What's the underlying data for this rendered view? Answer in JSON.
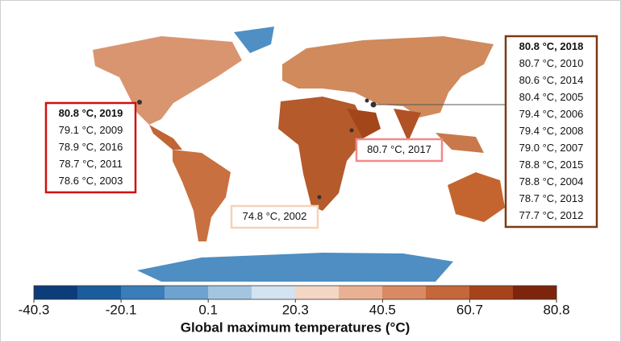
{
  "map": {
    "colorbar": {
      "title": "Global maximum temperatures (°C)",
      "ticks": [
        -40.3,
        -20.1,
        0.1,
        20.3,
        40.5,
        60.7,
        80.8
      ],
      "colors": [
        "#0d3c7a",
        "#1b5c9c",
        "#3a7db8",
        "#6ea3cf",
        "#a3c5e0",
        "#d3e3ef",
        "#f4d6c4",
        "#e9b193",
        "#da8a63",
        "#c5663b",
        "#a6431b",
        "#7d250c"
      ]
    },
    "annotations": [
      {
        "lines": [
          "80.8 °C, 2019",
          "79.1 °C, 2009",
          "78.9 °C, 2016",
          "78.7 °C, 2011",
          "78.6 °C, 2003"
        ],
        "border": "#d01010",
        "highlight": "#c00000"
      },
      {
        "lines": [
          "80.7 °C, 2017"
        ],
        "border": "#f08a8a"
      },
      {
        "lines": [
          "74.8 °C, 2002"
        ],
        "border": "#f6d2b8"
      },
      {
        "lines": [
          "80.8 °C, 2018",
          "80.7 °C, 2010",
          "80.6 °C, 2014",
          "80.4 °C, 2005",
          "79.4 °C, 2006",
          "79.4 °C, 2008",
          "79.0 °C, 2007",
          "78.8 °C, 2015",
          "78.8 °C, 2004",
          "78.7 °C, 2013",
          "77.7 °C, 2012"
        ],
        "border": "#7b3a14",
        "highlight": "#c00000"
      }
    ]
  }
}
